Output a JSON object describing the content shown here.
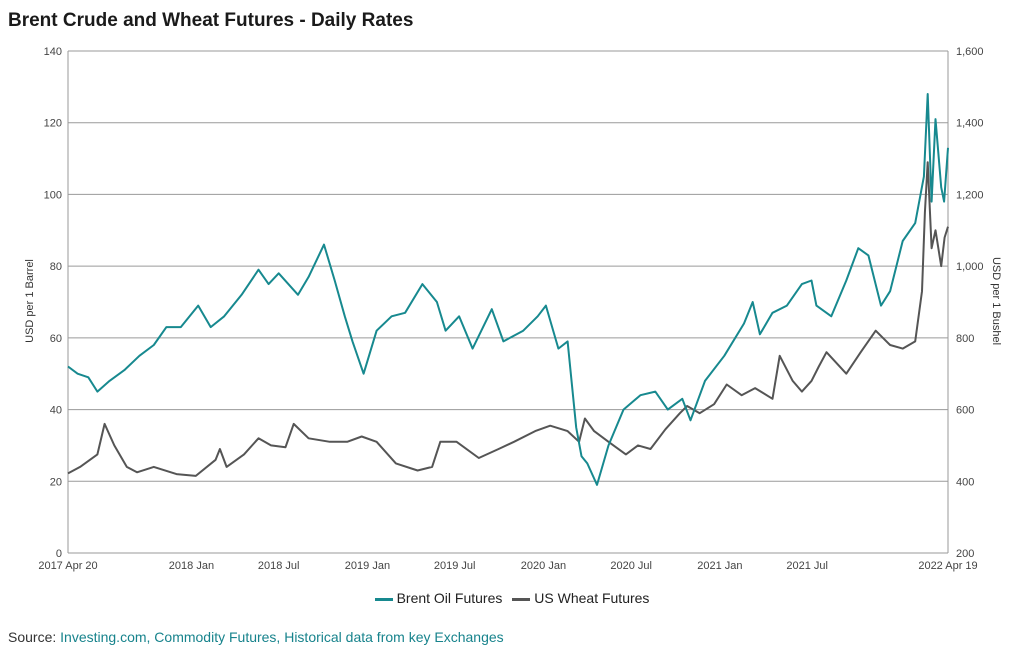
{
  "title": "Brent Crude and Wheat Futures - Daily Rates",
  "source": {
    "label": "Source:",
    "text": "Investing.com, Commodity Futures, Historical data from key Exchanges"
  },
  "colors": {
    "brent": "#17898f",
    "wheat": "#555555",
    "grid": "#9a9a9a"
  },
  "chart_data": {
    "type": "line",
    "y_left": {
      "label": "USD per 1 Barrel",
      "range": [
        0,
        140
      ],
      "ticks": [
        "0",
        "20",
        "40",
        "60",
        "80",
        "100",
        "120",
        "140"
      ]
    },
    "y_right": {
      "label": "USD per 1 Bushel",
      "range": [
        200,
        1600
      ],
      "ticks": [
        "200",
        "400",
        "600",
        "800",
        "1,000",
        "1,200",
        "1,400",
        "1,600"
      ]
    },
    "x_range": [
      "2017-04-20",
      "2022-04-19"
    ],
    "x_ticks": [
      {
        "label": "2017 Apr 20",
        "date": "2017-04-20"
      },
      {
        "label": "2018 Jan",
        "date": "2018-01-01"
      },
      {
        "label": "2018 Jul",
        "date": "2018-07-01"
      },
      {
        "label": "2019 Jan",
        "date": "2019-01-01"
      },
      {
        "label": "2019 Jul",
        "date": "2019-07-01"
      },
      {
        "label": "2020 Jan",
        "date": "2020-01-01"
      },
      {
        "label": "2020 Jul",
        "date": "2020-07-01"
      },
      {
        "label": "2021 Jan",
        "date": "2021-01-01"
      },
      {
        "label": "2021 Jul",
        "date": "2021-07-01"
      },
      {
        "label": "2022 Apr 19",
        "date": "2022-04-19"
      }
    ],
    "grid": true,
    "legend_position": "bottom",
    "series": [
      {
        "name": "Brent Oil Futures",
        "axis": "left",
        "points": [
          [
            "2017-04-20",
            52
          ],
          [
            "2017-05-10",
            50
          ],
          [
            "2017-06-01",
            49
          ],
          [
            "2017-06-20",
            45
          ],
          [
            "2017-07-15",
            48
          ],
          [
            "2017-08-15",
            51
          ],
          [
            "2017-09-15",
            55
          ],
          [
            "2017-10-15",
            58
          ],
          [
            "2017-11-10",
            63
          ],
          [
            "2017-12-10",
            63
          ],
          [
            "2018-01-15",
            69
          ],
          [
            "2018-02-10",
            63
          ],
          [
            "2018-03-10",
            66
          ],
          [
            "2018-04-15",
            72
          ],
          [
            "2018-05-20",
            79
          ],
          [
            "2018-06-10",
            75
          ],
          [
            "2018-07-01",
            78
          ],
          [
            "2018-08-10",
            72
          ],
          [
            "2018-09-01",
            77
          ],
          [
            "2018-10-03",
            86
          ],
          [
            "2018-10-25",
            76
          ],
          [
            "2018-11-15",
            66
          ],
          [
            "2018-12-01",
            59
          ],
          [
            "2018-12-24",
            50
          ],
          [
            "2019-01-20",
            62
          ],
          [
            "2019-02-20",
            66
          ],
          [
            "2019-03-20",
            67
          ],
          [
            "2019-04-25",
            75
          ],
          [
            "2019-05-25",
            70
          ],
          [
            "2019-06-12",
            62
          ],
          [
            "2019-07-10",
            66
          ],
          [
            "2019-08-07",
            57
          ],
          [
            "2019-09-16",
            68
          ],
          [
            "2019-10-10",
            59
          ],
          [
            "2019-11-20",
            62
          ],
          [
            "2019-12-20",
            66
          ],
          [
            "2020-01-06",
            69
          ],
          [
            "2020-02-01",
            57
          ],
          [
            "2020-02-20",
            59
          ],
          [
            "2020-03-09",
            35
          ],
          [
            "2020-03-20",
            27
          ],
          [
            "2020-04-01",
            25
          ],
          [
            "2020-04-21",
            19
          ],
          [
            "2020-05-15",
            30
          ],
          [
            "2020-06-15",
            40
          ],
          [
            "2020-07-20",
            44
          ],
          [
            "2020-08-20",
            45
          ],
          [
            "2020-09-15",
            40
          ],
          [
            "2020-10-15",
            43
          ],
          [
            "2020-11-01",
            37
          ],
          [
            "2020-12-01",
            48
          ],
          [
            "2021-01-10",
            55
          ],
          [
            "2021-02-20",
            64
          ],
          [
            "2021-03-10",
            70
          ],
          [
            "2021-03-25",
            61
          ],
          [
            "2021-04-20",
            67
          ],
          [
            "2021-05-20",
            69
          ],
          [
            "2021-06-20",
            75
          ],
          [
            "2021-07-10",
            76
          ],
          [
            "2021-07-20",
            69
          ],
          [
            "2021-08-20",
            66
          ],
          [
            "2021-09-20",
            76
          ],
          [
            "2021-10-15",
            85
          ],
          [
            "2021-11-05",
            83
          ],
          [
            "2021-12-01",
            69
          ],
          [
            "2021-12-20",
            73
          ],
          [
            "2022-01-15",
            87
          ],
          [
            "2022-02-10",
            92
          ],
          [
            "2022-02-28",
            105
          ],
          [
            "2022-03-08",
            128
          ],
          [
            "2022-03-16",
            98
          ],
          [
            "2022-03-24",
            121
          ],
          [
            "2022-04-05",
            102
          ],
          [
            "2022-04-11",
            98
          ],
          [
            "2022-04-19",
            113
          ]
        ]
      },
      {
        "name": "US Wheat Futures",
        "axis": "right",
        "points": [
          [
            "2017-04-20",
            422
          ],
          [
            "2017-05-15",
            440
          ],
          [
            "2017-06-20",
            475
          ],
          [
            "2017-07-05",
            560
          ],
          [
            "2017-07-25",
            500
          ],
          [
            "2017-08-20",
            440
          ],
          [
            "2017-09-10",
            425
          ],
          [
            "2017-10-15",
            440
          ],
          [
            "2017-12-01",
            420
          ],
          [
            "2018-01-10",
            415
          ],
          [
            "2018-02-20",
            460
          ],
          [
            "2018-03-01",
            490
          ],
          [
            "2018-03-15",
            440
          ],
          [
            "2018-04-20",
            475
          ],
          [
            "2018-05-20",
            520
          ],
          [
            "2018-06-15",
            500
          ],
          [
            "2018-07-15",
            495
          ],
          [
            "2018-08-01",
            560
          ],
          [
            "2018-09-01",
            520
          ],
          [
            "2018-10-15",
            510
          ],
          [
            "2018-11-20",
            510
          ],
          [
            "2018-12-20",
            525
          ],
          [
            "2019-01-20",
            510
          ],
          [
            "2019-03-01",
            450
          ],
          [
            "2019-04-15",
            430
          ],
          [
            "2019-05-15",
            440
          ],
          [
            "2019-06-01",
            510
          ],
          [
            "2019-07-05",
            510
          ],
          [
            "2019-08-20",
            465
          ],
          [
            "2019-09-30",
            490
          ],
          [
            "2019-11-01",
            510
          ],
          [
            "2019-12-15",
            540
          ],
          [
            "2020-01-15",
            555
          ],
          [
            "2020-02-20",
            540
          ],
          [
            "2020-03-15",
            510
          ],
          [
            "2020-03-27",
            575
          ],
          [
            "2020-04-15",
            540
          ],
          [
            "2020-05-15",
            510
          ],
          [
            "2020-06-20",
            475
          ],
          [
            "2020-07-15",
            500
          ],
          [
            "2020-08-10",
            490
          ],
          [
            "2020-09-10",
            545
          ],
          [
            "2020-10-10",
            590
          ],
          [
            "2020-10-25",
            610
          ],
          [
            "2020-11-20",
            590
          ],
          [
            "2020-12-20",
            615
          ],
          [
            "2021-01-15",
            670
          ],
          [
            "2021-02-15",
            640
          ],
          [
            "2021-03-15",
            660
          ],
          [
            "2021-04-20",
            630
          ],
          [
            "2021-05-05",
            750
          ],
          [
            "2021-06-01",
            680
          ],
          [
            "2021-06-20",
            650
          ],
          [
            "2021-07-10",
            680
          ],
          [
            "2021-07-25",
            720
          ],
          [
            "2021-08-10",
            760
          ],
          [
            "2021-09-20",
            700
          ],
          [
            "2021-10-20",
            760
          ],
          [
            "2021-11-20",
            820
          ],
          [
            "2021-12-20",
            780
          ],
          [
            "2022-01-15",
            770
          ],
          [
            "2022-02-10",
            790
          ],
          [
            "2022-02-24",
            930
          ],
          [
            "2022-03-02",
            1150
          ],
          [
            "2022-03-08",
            1290
          ],
          [
            "2022-03-16",
            1050
          ],
          [
            "2022-03-24",
            1100
          ],
          [
            "2022-04-05",
            1000
          ],
          [
            "2022-04-12",
            1080
          ],
          [
            "2022-04-19",
            1110
          ]
        ]
      }
    ]
  }
}
